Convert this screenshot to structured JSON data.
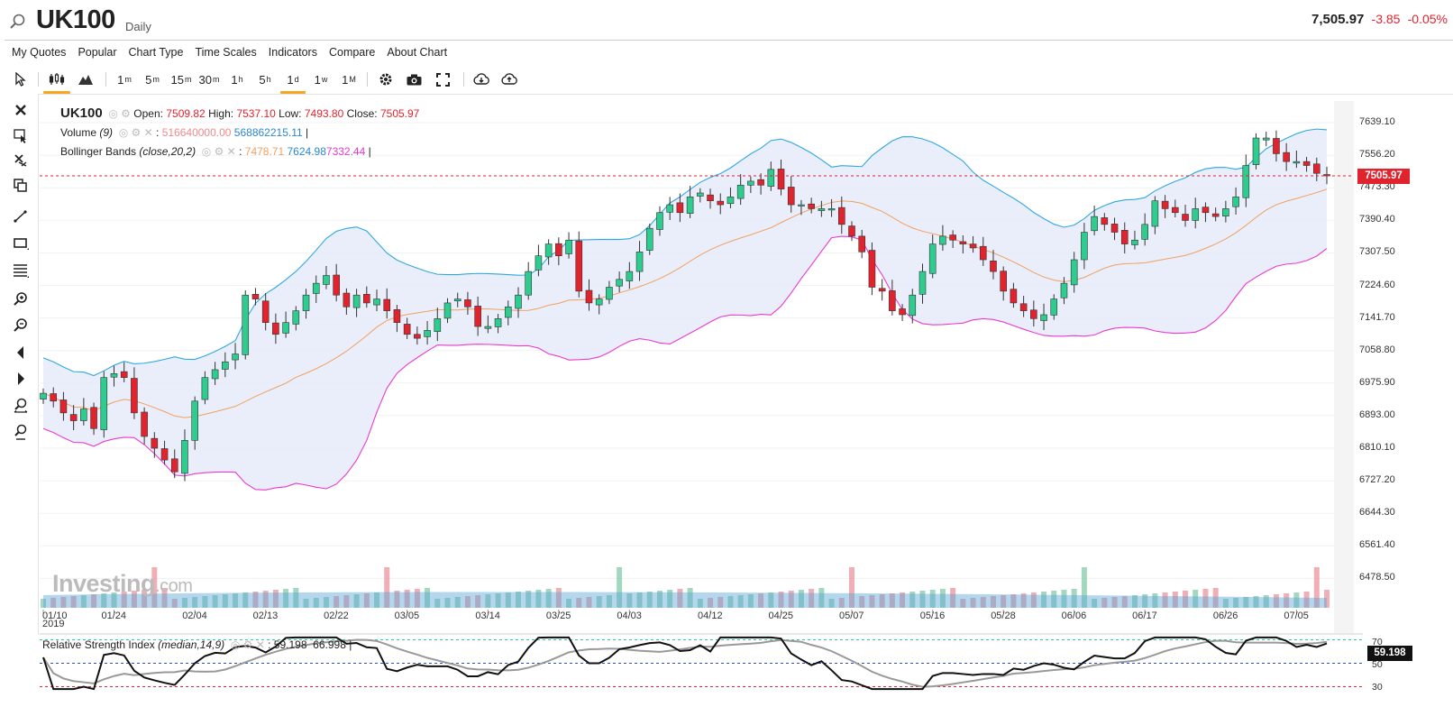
{
  "header": {
    "symbol": "UK100",
    "interval": "Daily",
    "last": "7,505.97",
    "change": "-3.85",
    "change_pct": "-0.05%"
  },
  "menu": [
    "My Quotes",
    "Popular",
    "Chart Type",
    "Time Scales",
    "Indicators",
    "Compare",
    "About Chart"
  ],
  "toolbar": {
    "timeframes": [
      {
        "base": "1",
        "sup": "m"
      },
      {
        "base": "5",
        "sup": "m"
      },
      {
        "base": "15",
        "sup": "m"
      },
      {
        "base": "30",
        "sup": "m"
      },
      {
        "base": "1",
        "sup": "h"
      },
      {
        "base": "5",
        "sup": "h"
      },
      {
        "base": "1",
        "sup": "d"
      },
      {
        "base": "1",
        "sup": "w"
      },
      {
        "base": "1",
        "sup": "M"
      }
    ],
    "active_timeframe": "1d"
  },
  "legend": {
    "symbol": "UK100",
    "open_label": "Open:",
    "open": "7509.82",
    "high_label": "High:",
    "high": "7537.10",
    "low_label": "Low:",
    "low": "7493.80",
    "close_label": "Close:",
    "close": "7505.97",
    "volume_name": "Volume",
    "volume_param": "(9)",
    "volume_v1": "516640000.00",
    "volume_v2": "568862215.11",
    "bb_name": "Bollinger Bands",
    "bb_param": "(close,20,2)",
    "bb_mid": "7478.71",
    "bb_upper": "7624.98",
    "bb_lower": "7332.44"
  },
  "rsi": {
    "name": "Relative Strength Index",
    "param": "(median,14,9)",
    "v1": "59.198",
    "v2": "66.998",
    "levels": [
      "70",
      "50",
      "30"
    ],
    "current_tag": "59.198"
  },
  "price_tag": "7505.97",
  "watermark": {
    "main": "Investing",
    "suffix": ".com"
  },
  "colors": {
    "up": "#2ecc8f",
    "down": "#e1232e",
    "upper_band": "#2fa8e0",
    "lower_band": "#e83ad1",
    "mid_band": "#f0a060",
    "band_fill": "#e6ebfa",
    "volume": "#5aa7d6",
    "rsi_line": "#111111",
    "rsi_signal": "#999999"
  },
  "chart_data": {
    "type": "candlestick",
    "y_ticks": [
      "7639.10",
      "7556.20",
      "7473.30",
      "7390.40",
      "7307.50",
      "7224.60",
      "7141.70",
      "7058.80",
      "6975.90",
      "6893.00",
      "6810.10",
      "6727.20",
      "6644.30",
      "6561.40",
      "6478.50"
    ],
    "x_ticks": [
      "01/10",
      "01/24",
      "02/04",
      "02/13",
      "02/22",
      "03/05",
      "03/14",
      "03/25",
      "04/03",
      "04/12",
      "04/25",
      "05/07",
      "05/16",
      "05/28",
      "06/06",
      "06/17",
      "06/26",
      "07/05"
    ],
    "x_year": "2019",
    "ylim": [
      6440,
      7700
    ],
    "closes": [
      6950,
      6930,
      6900,
      6880,
      6910,
      6860,
      6990,
      7000,
      6990,
      6900,
      6840,
      6810,
      6780,
      6750,
      6830,
      6930,
      6990,
      7010,
      7030,
      7050,
      7200,
      7190,
      7130,
      7100,
      7130,
      7160,
      7200,
      7230,
      7250,
      7200,
      7170,
      7200,
      7180,
      7190,
      7160,
      7130,
      7100,
      7090,
      7110,
      7140,
      7180,
      7190,
      7170,
      7120,
      7120,
      7140,
      7170,
      7200,
      7260,
      7300,
      7330,
      7300,
      7340,
      7210,
      7180,
      7190,
      7220,
      7240,
      7260,
      7310,
      7370,
      7410,
      7430,
      7410,
      7450,
      7460,
      7440,
      7430,
      7450,
      7480,
      7490,
      7480,
      7520,
      7470,
      7430,
      7430,
      7420,
      7420,
      7420,
      7380,
      7350,
      7310,
      7220,
      7210,
      7160,
      7150,
      7200,
      7260,
      7330,
      7350,
      7340,
      7330,
      7320,
      7290,
      7260,
      7210,
      7180,
      7160,
      7140,
      7150,
      7190,
      7230,
      7290,
      7360,
      7400,
      7380,
      7360,
      7330,
      7340,
      7380,
      7440,
      7420,
      7410,
      7390,
      7420,
      7410,
      7400,
      7420,
      7450,
      7530,
      7600,
      7600,
      7560,
      7540,
      7540,
      7530,
      7510,
      7505.97
    ]
  }
}
